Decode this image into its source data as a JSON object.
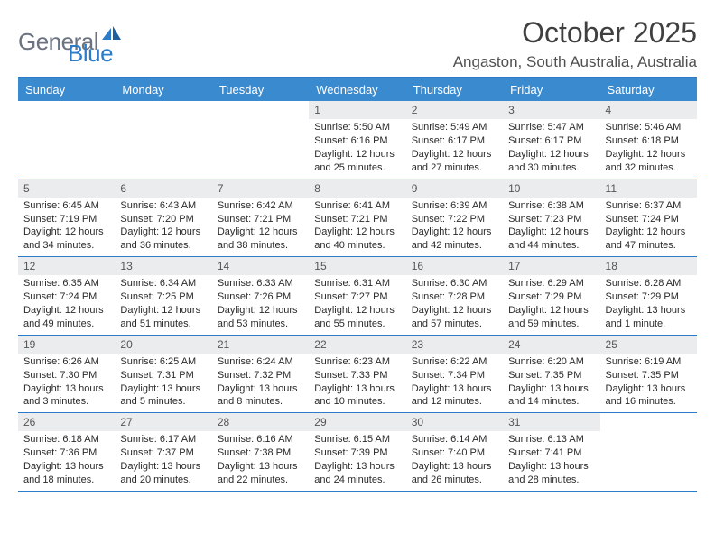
{
  "logo": {
    "word1": "General",
    "word2": "Blue"
  },
  "title": "October 2025",
  "location": "Angaston, South Australia, Australia",
  "colors": {
    "header_bg": "#3a8ad0",
    "border": "#2d7cc9",
    "daynum_bg": "#ebeced",
    "logo_grey": "#6b7280",
    "logo_blue": "#2d7cc9",
    "text": "#1a1a1a",
    "page_bg": "#ffffff"
  },
  "typography": {
    "title_size": 32,
    "location_size": 17,
    "dow_size": 13,
    "body_size": 11
  },
  "days_of_week": [
    "Sunday",
    "Monday",
    "Tuesday",
    "Wednesday",
    "Thursday",
    "Friday",
    "Saturday"
  ],
  "weeks": [
    [
      {
        "empty": true
      },
      {
        "empty": true
      },
      {
        "empty": true
      },
      {
        "num": "1",
        "sunrise": "Sunrise: 5:50 AM",
        "sunset": "Sunset: 6:16 PM",
        "daylight1": "Daylight: 12 hours",
        "daylight2": "and 25 minutes."
      },
      {
        "num": "2",
        "sunrise": "Sunrise: 5:49 AM",
        "sunset": "Sunset: 6:17 PM",
        "daylight1": "Daylight: 12 hours",
        "daylight2": "and 27 minutes."
      },
      {
        "num": "3",
        "sunrise": "Sunrise: 5:47 AM",
        "sunset": "Sunset: 6:17 PM",
        "daylight1": "Daylight: 12 hours",
        "daylight2": "and 30 minutes."
      },
      {
        "num": "4",
        "sunrise": "Sunrise: 5:46 AM",
        "sunset": "Sunset: 6:18 PM",
        "daylight1": "Daylight: 12 hours",
        "daylight2": "and 32 minutes."
      }
    ],
    [
      {
        "num": "5",
        "sunrise": "Sunrise: 6:45 AM",
        "sunset": "Sunset: 7:19 PM",
        "daylight1": "Daylight: 12 hours",
        "daylight2": "and 34 minutes."
      },
      {
        "num": "6",
        "sunrise": "Sunrise: 6:43 AM",
        "sunset": "Sunset: 7:20 PM",
        "daylight1": "Daylight: 12 hours",
        "daylight2": "and 36 minutes."
      },
      {
        "num": "7",
        "sunrise": "Sunrise: 6:42 AM",
        "sunset": "Sunset: 7:21 PM",
        "daylight1": "Daylight: 12 hours",
        "daylight2": "and 38 minutes."
      },
      {
        "num": "8",
        "sunrise": "Sunrise: 6:41 AM",
        "sunset": "Sunset: 7:21 PM",
        "daylight1": "Daylight: 12 hours",
        "daylight2": "and 40 minutes."
      },
      {
        "num": "9",
        "sunrise": "Sunrise: 6:39 AM",
        "sunset": "Sunset: 7:22 PM",
        "daylight1": "Daylight: 12 hours",
        "daylight2": "and 42 minutes."
      },
      {
        "num": "10",
        "sunrise": "Sunrise: 6:38 AM",
        "sunset": "Sunset: 7:23 PM",
        "daylight1": "Daylight: 12 hours",
        "daylight2": "and 44 minutes."
      },
      {
        "num": "11",
        "sunrise": "Sunrise: 6:37 AM",
        "sunset": "Sunset: 7:24 PM",
        "daylight1": "Daylight: 12 hours",
        "daylight2": "and 47 minutes."
      }
    ],
    [
      {
        "num": "12",
        "sunrise": "Sunrise: 6:35 AM",
        "sunset": "Sunset: 7:24 PM",
        "daylight1": "Daylight: 12 hours",
        "daylight2": "and 49 minutes."
      },
      {
        "num": "13",
        "sunrise": "Sunrise: 6:34 AM",
        "sunset": "Sunset: 7:25 PM",
        "daylight1": "Daylight: 12 hours",
        "daylight2": "and 51 minutes."
      },
      {
        "num": "14",
        "sunrise": "Sunrise: 6:33 AM",
        "sunset": "Sunset: 7:26 PM",
        "daylight1": "Daylight: 12 hours",
        "daylight2": "and 53 minutes."
      },
      {
        "num": "15",
        "sunrise": "Sunrise: 6:31 AM",
        "sunset": "Sunset: 7:27 PM",
        "daylight1": "Daylight: 12 hours",
        "daylight2": "and 55 minutes."
      },
      {
        "num": "16",
        "sunrise": "Sunrise: 6:30 AM",
        "sunset": "Sunset: 7:28 PM",
        "daylight1": "Daylight: 12 hours",
        "daylight2": "and 57 minutes."
      },
      {
        "num": "17",
        "sunrise": "Sunrise: 6:29 AM",
        "sunset": "Sunset: 7:29 PM",
        "daylight1": "Daylight: 12 hours",
        "daylight2": "and 59 minutes."
      },
      {
        "num": "18",
        "sunrise": "Sunrise: 6:28 AM",
        "sunset": "Sunset: 7:29 PM",
        "daylight1": "Daylight: 13 hours",
        "daylight2": "and 1 minute."
      }
    ],
    [
      {
        "num": "19",
        "sunrise": "Sunrise: 6:26 AM",
        "sunset": "Sunset: 7:30 PM",
        "daylight1": "Daylight: 13 hours",
        "daylight2": "and 3 minutes."
      },
      {
        "num": "20",
        "sunrise": "Sunrise: 6:25 AM",
        "sunset": "Sunset: 7:31 PM",
        "daylight1": "Daylight: 13 hours",
        "daylight2": "and 5 minutes."
      },
      {
        "num": "21",
        "sunrise": "Sunrise: 6:24 AM",
        "sunset": "Sunset: 7:32 PM",
        "daylight1": "Daylight: 13 hours",
        "daylight2": "and 8 minutes."
      },
      {
        "num": "22",
        "sunrise": "Sunrise: 6:23 AM",
        "sunset": "Sunset: 7:33 PM",
        "daylight1": "Daylight: 13 hours",
        "daylight2": "and 10 minutes."
      },
      {
        "num": "23",
        "sunrise": "Sunrise: 6:22 AM",
        "sunset": "Sunset: 7:34 PM",
        "daylight1": "Daylight: 13 hours",
        "daylight2": "and 12 minutes."
      },
      {
        "num": "24",
        "sunrise": "Sunrise: 6:20 AM",
        "sunset": "Sunset: 7:35 PM",
        "daylight1": "Daylight: 13 hours",
        "daylight2": "and 14 minutes."
      },
      {
        "num": "25",
        "sunrise": "Sunrise: 6:19 AM",
        "sunset": "Sunset: 7:35 PM",
        "daylight1": "Daylight: 13 hours",
        "daylight2": "and 16 minutes."
      }
    ],
    [
      {
        "num": "26",
        "sunrise": "Sunrise: 6:18 AM",
        "sunset": "Sunset: 7:36 PM",
        "daylight1": "Daylight: 13 hours",
        "daylight2": "and 18 minutes."
      },
      {
        "num": "27",
        "sunrise": "Sunrise: 6:17 AM",
        "sunset": "Sunset: 7:37 PM",
        "daylight1": "Daylight: 13 hours",
        "daylight2": "and 20 minutes."
      },
      {
        "num": "28",
        "sunrise": "Sunrise: 6:16 AM",
        "sunset": "Sunset: 7:38 PM",
        "daylight1": "Daylight: 13 hours",
        "daylight2": "and 22 minutes."
      },
      {
        "num": "29",
        "sunrise": "Sunrise: 6:15 AM",
        "sunset": "Sunset: 7:39 PM",
        "daylight1": "Daylight: 13 hours",
        "daylight2": "and 24 minutes."
      },
      {
        "num": "30",
        "sunrise": "Sunrise: 6:14 AM",
        "sunset": "Sunset: 7:40 PM",
        "daylight1": "Daylight: 13 hours",
        "daylight2": "and 26 minutes."
      },
      {
        "num": "31",
        "sunrise": "Sunrise: 6:13 AM",
        "sunset": "Sunset: 7:41 PM",
        "daylight1": "Daylight: 13 hours",
        "daylight2": "and 28 minutes."
      },
      {
        "empty": true
      }
    ]
  ]
}
